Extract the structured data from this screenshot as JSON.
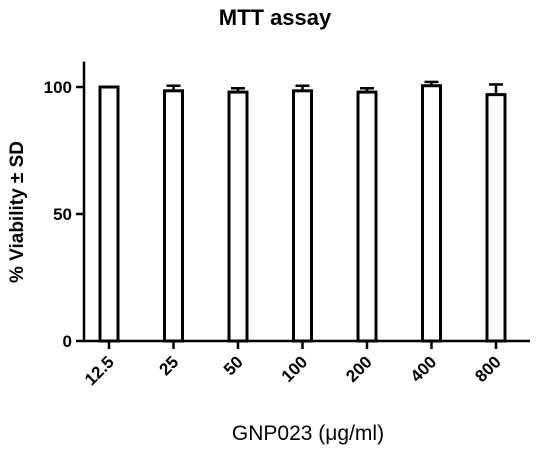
{
  "chart_data": {
    "type": "bar",
    "title": "MTT assay",
    "xlabel": "GNP023 (μg/ml)",
    "ylabel": "% Viability ± SD",
    "categories": [
      "12.5",
      "25",
      "50",
      "100",
      "200",
      "400",
      "800"
    ],
    "values": [
      100,
      98.5,
      98,
      98.5,
      98,
      100.5,
      97
    ],
    "errors": [
      0,
      2,
      1.5,
      2,
      1.5,
      1.5,
      4
    ],
    "ylim": [
      0,
      110
    ],
    "yticks": [
      0,
      50,
      100
    ],
    "grid": false,
    "legend": "none",
    "colors": {
      "bar_fill": "#ffffff",
      "bar_stroke": "#000000"
    }
  }
}
